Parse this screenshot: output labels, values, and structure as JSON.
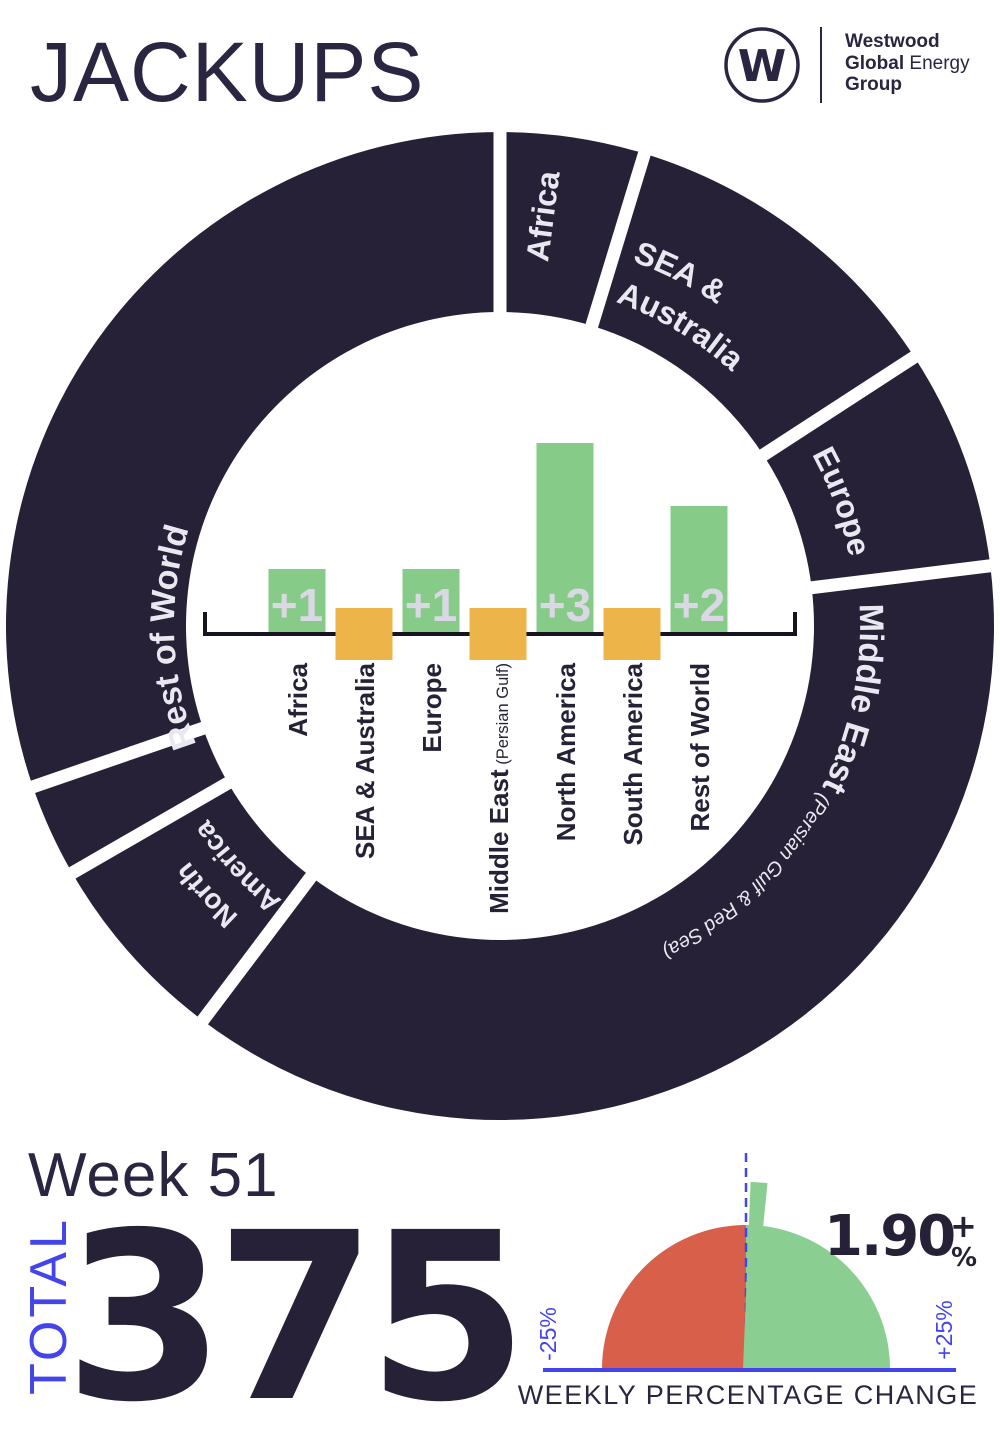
{
  "colors": {
    "navy": "#262136",
    "navy_soft": "#2a2540",
    "ring_label": "#e9e8f1",
    "green": "#86cb88",
    "gauge_green": "#8bce91",
    "orange": "#ecb449",
    "red": "#d85f4a",
    "blue": "#4444ec",
    "axis": "#17131f",
    "bar_value_text": "#d9d8e4",
    "white": "#ffffff"
  },
  "header": {
    "title": "JACKUPS",
    "logo": {
      "monogram": "W",
      "line1_bold": "Westwood",
      "line2_bold": "Global",
      "line2_light": " Energy",
      "line3_bold": "Group"
    }
  },
  "chart_data": [
    {
      "type": "pie",
      "subtype": "donut",
      "description": "Regional ring of jackup rig fleet; segment arc length proportional to regional share. Angles in degrees clockwise from 12 o'clock.",
      "segments": [
        {
          "label": "Africa",
          "label_lines": [
            "Africa"
          ],
          "start_deg": 0,
          "end_deg": 17
        },
        {
          "label": "SEA & Australia",
          "label_lines": [
            "SEA &",
            "Australia"
          ],
          "start_deg": 17,
          "end_deg": 57
        },
        {
          "label": "Europe",
          "label_lines": [
            "Europe"
          ],
          "start_deg": 57,
          "end_deg": 83
        },
        {
          "label": "Middle East",
          "sublabel": "  (Persian Gulf & Red Sea)",
          "label_lines": [
            "Middle East"
          ],
          "start_deg": 83,
          "end_deg": 217
        },
        {
          "label": "North America",
          "label_lines": [
            "North",
            "America"
          ],
          "start_deg": 217,
          "end_deg": 240
        },
        {
          "label": "South America",
          "label_lines": [],
          "start_deg": 240,
          "end_deg": 251
        },
        {
          "label": "Rest of World",
          "label_lines": [
            "Rest of World"
          ],
          "start_deg": 251,
          "end_deg": 360
        }
      ]
    },
    {
      "type": "bar",
      "description": "Weekly change in jackup count by region; green bars = increase with label, orange squares straddling axis = no change.",
      "categories": [
        "Africa",
        "SEA & Australia",
        "Europe",
        "Middle East",
        "North America",
        "South America",
        "Rest of World"
      ],
      "category_notes": [
        null,
        null,
        null,
        " (Persian Gulf)",
        null,
        null,
        null
      ],
      "values": [
        1,
        0,
        1,
        0,
        3,
        0,
        2
      ],
      "bar_labels": [
        "+1",
        null,
        "+1",
        null,
        "+3",
        null,
        "+2"
      ],
      "bar_styles": [
        "up",
        "flat",
        "up",
        "flat",
        "up",
        "flat",
        "up"
      ]
    },
    {
      "type": "gauge",
      "title": "WEEKLY PERCENTAGE CHANGE",
      "value": 1.9,
      "display_value": "1.90",
      "display_sign": "+",
      "display_unit": "%",
      "min": -25,
      "max": 25,
      "min_label": "-25%",
      "max_label": "+25%"
    }
  ],
  "footer": {
    "week_label": "Week 51",
    "total_label": "TOTAL",
    "total_value": "375"
  }
}
